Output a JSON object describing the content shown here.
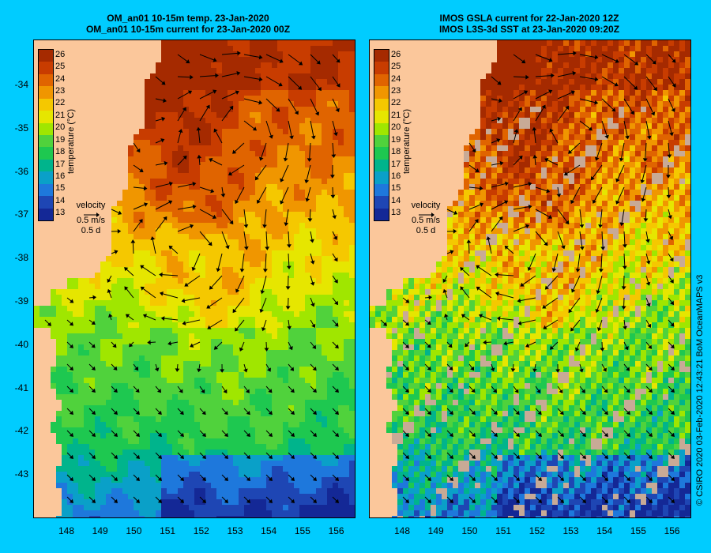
{
  "left_panel": {
    "title_line1": "OM_an01 10-15m temp. 23-Jan-2020",
    "title_line2": "OM_an01 10-15m current for 23-Jan-2020 00Z"
  },
  "right_panel": {
    "title_line1": "IMOS GSLA current for 22-Jan-2020 12Z",
    "title_line2": "IMOS L3S-3d SST at 23-Jan-2020 09:20Z"
  },
  "colorbar": {
    "title": "temperature (°C)",
    "labels": [
      "26",
      "25",
      "24",
      "23",
      "22",
      "21",
      "20",
      "19",
      "18",
      "17",
      "16",
      "15",
      "14",
      "13"
    ],
    "colors": [
      "#a52a00",
      "#c83c00",
      "#e06400",
      "#f09600",
      "#f5c800",
      "#e6e600",
      "#a0e600",
      "#50d23c",
      "#1ec850",
      "#00b48c",
      "#0aa0c8",
      "#1e78dc",
      "#1e46b4",
      "#142896"
    ]
  },
  "velocity_key": {
    "label": "velocity",
    "speed": "0.5 m/s",
    "duration": "0.5 d"
  },
  "y_axis": {
    "labels": [
      "-34",
      "-35",
      "-36",
      "-37",
      "-38",
      "-39",
      "-40",
      "-41",
      "-42",
      "-43"
    ]
  },
  "x_axis": {
    "labels": [
      "148",
      "149",
      "150",
      "151",
      "152",
      "153",
      "154",
      "155",
      "156"
    ]
  },
  "credit": "© CSIRO 2020   03-Feb-2020 12:43:21 BoM OceanMAPS v3",
  "colors": {
    "background": "#00ccff",
    "land": "#fbc79b",
    "cloud": "#c8aa96"
  }
}
